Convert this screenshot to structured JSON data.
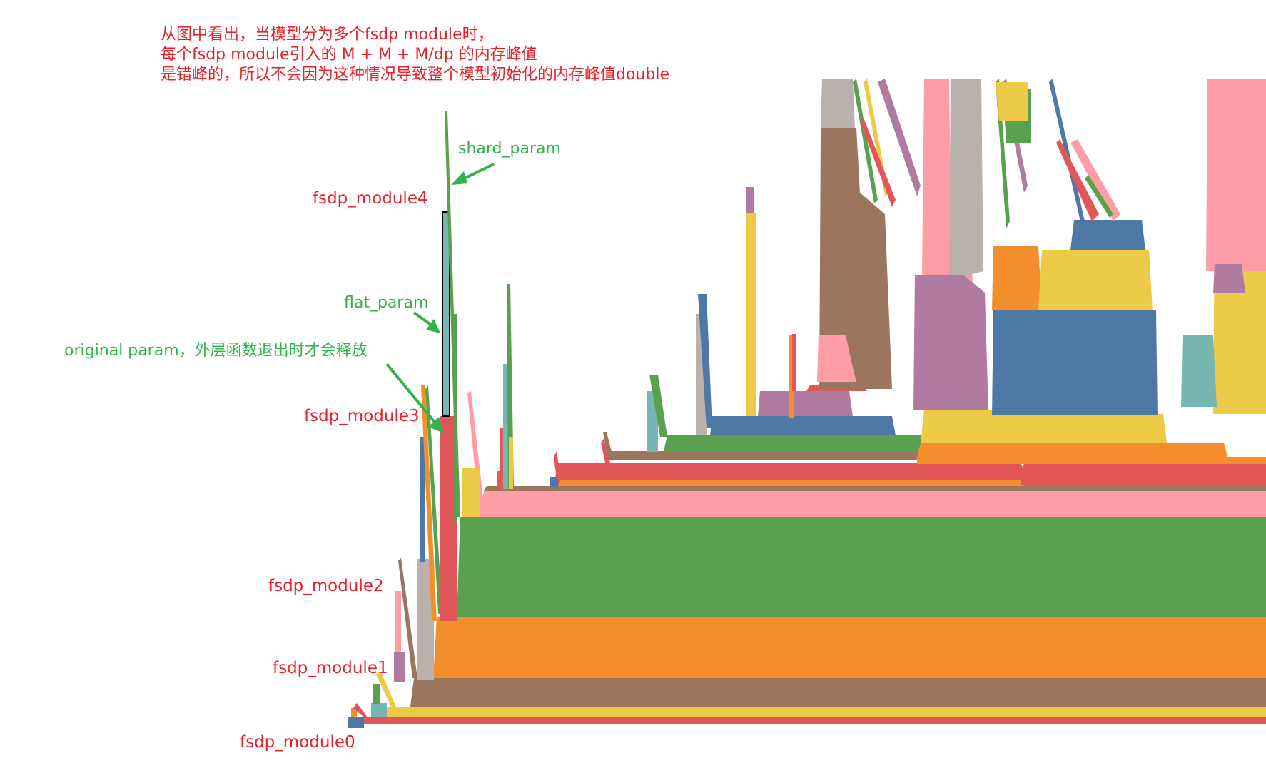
{
  "note": {
    "lines": [
      "从图中看出，当模型分为多个fsdp module时，",
      "每个fsdp module引入的 M + M + M/dp 的内存峰值",
      "是错峰的，所以不会因为这种情况导致整个模型初始化的内存峰值double"
    ]
  },
  "annotations": {
    "shard_param": "shard_param",
    "flat_param": "flat_param",
    "original_param": "original param，外层函数退出时才会释放"
  },
  "chart_data": {
    "type": "area",
    "title": "",
    "xlabel": "",
    "ylabel": "",
    "module_labels": [
      "fsdp_module0",
      "fsdp_module1",
      "fsdp_module2",
      "fsdp_module3",
      "fsdp_module4"
    ],
    "palette": [
      "#e15759",
      "#edc948",
      "#9c755f",
      "#f28e2b",
      "#59a14f",
      "#ff9da7",
      "#4e79a7",
      "#76b7b2",
      "#bab0ac",
      "#b07aa1"
    ],
    "module_layers": [
      {
        "module": "fsdp_module0",
        "color": "#e15759",
        "from": 0.08,
        "to": 1.0,
        "height": 1
      },
      {
        "module": "fsdp_module0",
        "color": "#edc948",
        "from": 0.1,
        "to": 1.0,
        "height": 2
      },
      {
        "module": "fsdp_module1",
        "color": "#9c755f",
        "from": 0.13,
        "to": 1.0,
        "height": 6
      },
      {
        "module": "fsdp_module2",
        "color": "#f28e2b",
        "from": 0.2,
        "to": 1.0,
        "height": 12
      },
      {
        "module": "fsdp_module3",
        "color": "#59a14f",
        "from": 0.24,
        "to": 1.0,
        "height": 20
      },
      {
        "module": "fsdp_module4",
        "color": "#ff9da7",
        "from": 0.28,
        "to": 1.0,
        "height": 5
      },
      {
        "module": "fsdp_module4",
        "color": "#e15759",
        "from": 0.4,
        "to": 1.0,
        "height": 4
      }
    ],
    "peaks": [
      {
        "module": "fsdp_module0",
        "original_param": 2,
        "flat_param": 2,
        "shard_param": 2
      },
      {
        "module": "fsdp_module1",
        "original_param": 6,
        "flat_param": 6,
        "shard_param": 3
      },
      {
        "module": "fsdp_module2",
        "original_param": 12,
        "flat_param": 12,
        "shard_param": 6
      },
      {
        "module": "fsdp_module3",
        "original_param": 20,
        "flat_param": 20,
        "shard_param": 30
      },
      {
        "module": "fsdp_module4",
        "original_param": 5,
        "flat_param": 5,
        "shard_param": 4
      }
    ]
  }
}
